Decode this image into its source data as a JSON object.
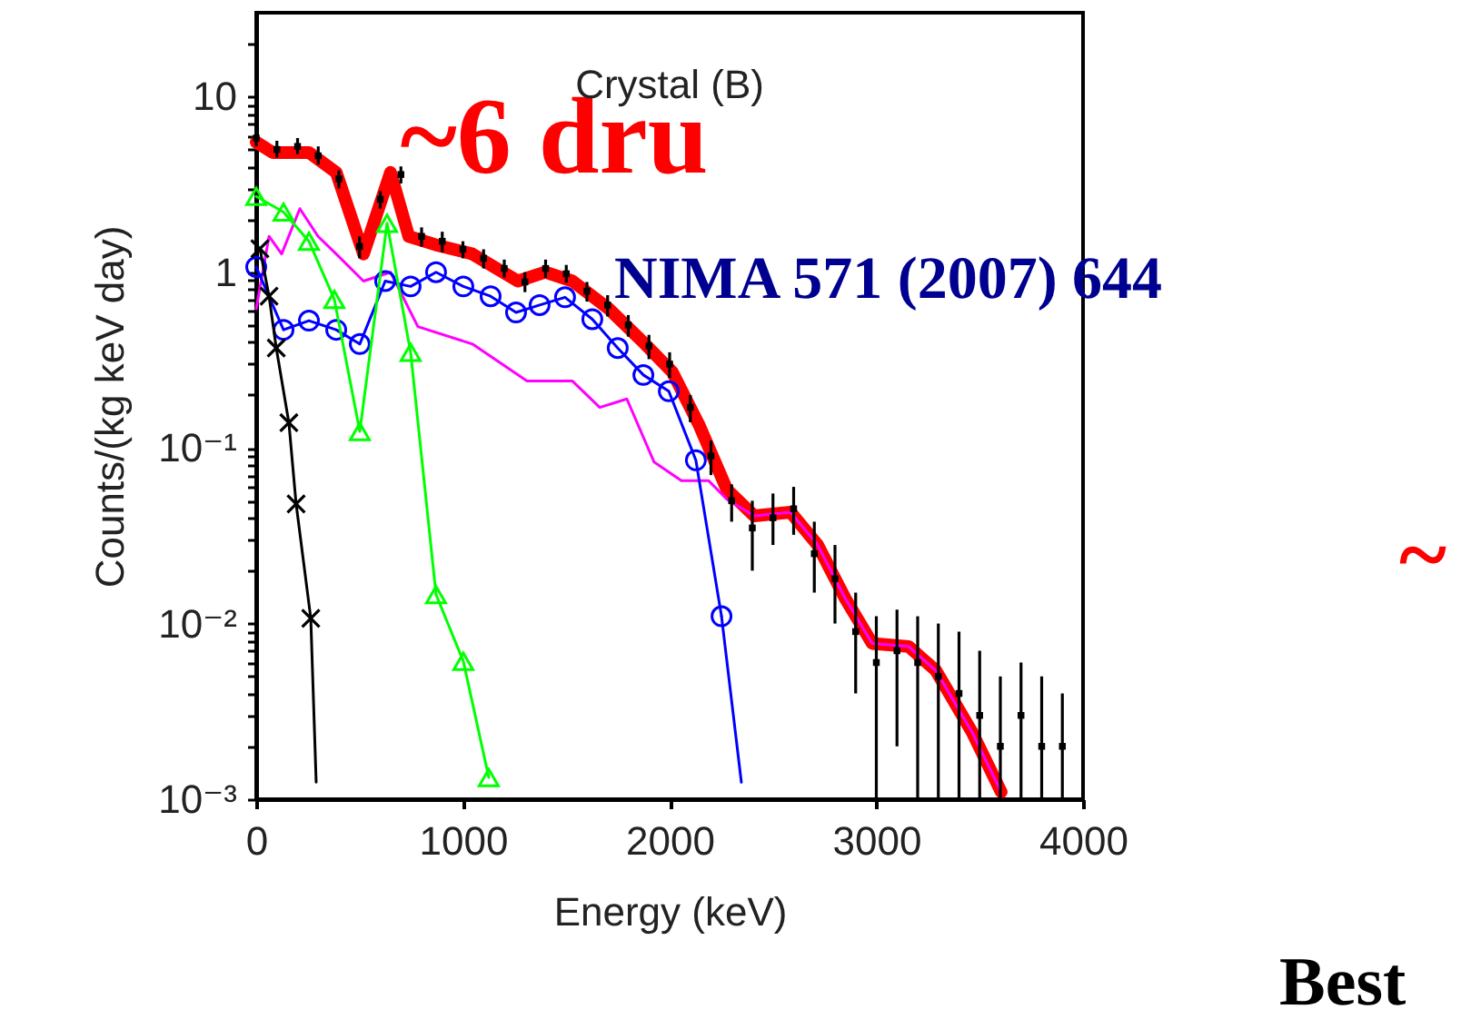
{
  "chart_data": {
    "type": "line",
    "title": "Crystal (B)",
    "xlabel": "Energy (keV)",
    "ylabel": "Counts/(kg keV day)",
    "log": "y",
    "grid": false,
    "xlim": [
      0,
      4000
    ],
    "xticks": [
      0,
      1000,
      2000,
      3000,
      4000
    ],
    "ylim": [
      0.001,
      30
    ],
    "yticks": [
      {
        "value": 0.001,
        "label": "10⁻³"
      },
      {
        "value": 0.002,
        "label": null
      },
      {
        "value": 0.003,
        "label": null
      },
      {
        "value": 0.004,
        "label": null
      },
      {
        "value": 0.005,
        "label": null
      },
      {
        "value": 0.006,
        "label": null
      },
      {
        "value": 0.007,
        "label": null
      },
      {
        "value": 0.008,
        "label": null
      },
      {
        "value": 0.009,
        "label": null
      },
      {
        "value": 0.01,
        "label": "10⁻²"
      },
      {
        "value": 0.02,
        "label": null
      },
      {
        "value": 0.03,
        "label": null
      },
      {
        "value": 0.04,
        "label": null
      },
      {
        "value": 0.05,
        "label": null
      },
      {
        "value": 0.06,
        "label": null
      },
      {
        "value": 0.07,
        "label": null
      },
      {
        "value": 0.08,
        "label": null
      },
      {
        "value": 0.09,
        "label": null
      },
      {
        "value": 0.1,
        "label": "10⁻¹"
      },
      {
        "value": 0.2,
        "label": null
      },
      {
        "value": 0.3,
        "label": null
      },
      {
        "value": 0.4,
        "label": null
      },
      {
        "value": 0.5,
        "label": null
      },
      {
        "value": 0.6,
        "label": null
      },
      {
        "value": 0.7,
        "label": null
      },
      {
        "value": 0.8,
        "label": null
      },
      {
        "value": 0.9,
        "label": null
      },
      1,
      {
        "value": 2,
        "label": null
      },
      {
        "value": 3,
        "label": null
      },
      {
        "value": 4,
        "label": null
      },
      {
        "value": 5,
        "label": null
      },
      {
        "value": 6,
        "label": null
      },
      {
        "value": 7,
        "label": null
      },
      {
        "value": 8,
        "label": null
      },
      {
        "value": 9,
        "label": null
      },
      10,
      {
        "value": 20,
        "label": null
      }
    ],
    "annotations": [
      "~6 dru",
      "NIMA 571 (2007) 644",
      "~",
      "Best"
    ],
    "series": [
      {
        "type": "scatter",
        "color": "#000000",
        "marker": "square",
        "x": [
          0,
          100,
          200,
          300,
          400,
          500,
          600,
          700,
          800,
          900,
          1000,
          1100,
          1200,
          1300,
          1400,
          1500,
          1600,
          1700,
          1800,
          1900,
          2000,
          2100,
          2200,
          2300,
          2400,
          2500,
          2600,
          2700,
          2800,
          2900,
          3000,
          3100,
          3200,
          3300,
          3400,
          3500,
          3600,
          3700,
          3800,
          3900
        ],
        "values": [
          5.8,
          5.0,
          5.2,
          4.6,
          3.4,
          1.4,
          2.6,
          3.6,
          1.6,
          1.5,
          1.35,
          1.2,
          1.05,
          0.88,
          1.05,
          0.98,
          0.78,
          0.65,
          0.5,
          0.38,
          0.3,
          0.17,
          0.09,
          0.05,
          0.035,
          0.04,
          0.045,
          0.025,
          0.018,
          0.009,
          0.006,
          0.007,
          0.006,
          0.005,
          0.004,
          0.003,
          0.002,
          0.003,
          0.002,
          0.002
        ],
        "errors": [
          [
            5.2,
            6.5
          ],
          [
            4.5,
            5.6
          ],
          [
            4.7,
            5.8
          ],
          [
            4.1,
            5.2
          ],
          [
            3.0,
            3.8
          ],
          [
            1.2,
            1.6
          ],
          [
            2.3,
            2.9
          ],
          [
            3.2,
            4.0
          ],
          [
            1.4,
            1.8
          ],
          [
            1.3,
            1.7
          ],
          [
            1.2,
            1.5
          ],
          [
            1.05,
            1.35
          ],
          [
            0.93,
            1.18
          ],
          [
            0.77,
            1.0
          ],
          [
            0.93,
            1.18
          ],
          [
            0.87,
            1.1
          ],
          [
            0.68,
            0.88
          ],
          [
            0.56,
            0.74
          ],
          [
            0.43,
            0.57
          ],
          [
            0.32,
            0.44
          ],
          [
            0.25,
            0.35
          ],
          [
            0.14,
            0.2
          ],
          [
            0.07,
            0.11
          ],
          [
            0.038,
            0.062
          ],
          [
            0.02,
            0.05
          ],
          [
            0.028,
            0.055
          ],
          [
            0.032,
            0.06
          ],
          [
            0.015,
            0.038
          ],
          [
            0.01,
            0.028
          ],
          [
            0.004,
            0.015
          ],
          [
            0.001,
            0.011
          ],
          [
            0.002,
            0.012
          ],
          [
            0.001,
            0.011
          ],
          [
            0.001,
            0.01
          ],
          [
            0.001,
            0.009
          ],
          [
            0.001,
            0.007
          ],
          [
            0.001,
            0.005
          ],
          [
            0.001,
            0.006
          ],
          [
            0.001,
            0.005
          ],
          [
            0.001,
            0.004
          ]
        ]
      },
      {
        "color": "#ff0000",
        "x": [
          0,
          79,
          255,
          387,
          519,
          650,
          738,
          870,
          1046,
          1266,
          1398,
          1530,
          1705,
          1881,
          2013,
          2145,
          2277,
          2409,
          2585,
          2716,
          2848,
          2980,
          3156,
          3288,
          3464,
          3604
        ],
        "values": [
          5.5,
          4.8,
          4.8,
          3.7,
          1.27,
          3.7,
          1.6,
          1.43,
          1.27,
          0.89,
          1.0,
          0.89,
          0.62,
          0.39,
          0.27,
          0.133,
          0.058,
          0.041,
          0.043,
          0.028,
          0.014,
          0.0077,
          0.0074,
          0.0054,
          0.0024,
          0.0011
        ]
      },
      {
        "color": "#ff00ff",
        "x": [
          0,
          62,
          123,
          211,
          299,
          387,
          519,
          650,
          782,
          1046,
          1310,
          1530,
          1662,
          1793,
          1925,
          2057,
          2189,
          2277,
          2409,
          2585,
          2716,
          2848,
          2980,
          3156,
          3288,
          3464,
          3604
        ],
        "values": [
          0.62,
          1.6,
          1.27,
          2.3,
          1.6,
          1.27,
          0.89,
          1.0,
          0.49,
          0.39,
          0.24,
          0.24,
          0.17,
          0.19,
          0.083,
          0.065,
          0.065,
          0.051,
          0.041,
          0.043,
          0.028,
          0.014,
          0.0077,
          0.0074,
          0.0054,
          0.0024,
          0.0011
        ]
      },
      {
        "color": "#0000ff",
        "marker": "circle",
        "x": [
          0,
          132,
          255,
          387,
          501,
          624,
          747,
          870,
          1002,
          1134,
          1257,
          1371,
          1494,
          1626,
          1749,
          1873,
          1996,
          2127,
          2251
        ],
        "values": [
          1.07,
          0.47,
          0.53,
          0.47,
          0.39,
          0.89,
          0.83,
          1.0,
          0.83,
          0.73,
          0.59,
          0.65,
          0.72,
          0.54,
          0.37,
          0.26,
          0.21,
          0.085,
          0.011
        ]
      },
      {
        "color": "#0000ff",
        "x": [
          2251,
          2347
        ],
        "values": [
          0.011,
          0.00125
        ]
      },
      {
        "color": "#00ff00",
        "marker": "triangle",
        "x": [
          0,
          132,
          255,
          378,
          501,
          633,
          747,
          870,
          1002,
          1125
        ],
        "values": [
          2.7,
          2.2,
          1.5,
          0.7,
          0.124,
          1.9,
          0.35,
          0.0146,
          0.0061,
          0.00133
        ]
      },
      {
        "color": "#000000",
        "marker": "cross",
        "x": [
          18,
          62,
          97,
          158,
          193,
          264
        ],
        "values": [
          1.36,
          0.73,
          0.37,
          0.139,
          0.048,
          0.0107
        ]
      },
      {
        "color": "#000000",
        "x": [
          264,
          290
        ],
        "values": [
          0.0107,
          0.00125
        ]
      }
    ]
  }
}
